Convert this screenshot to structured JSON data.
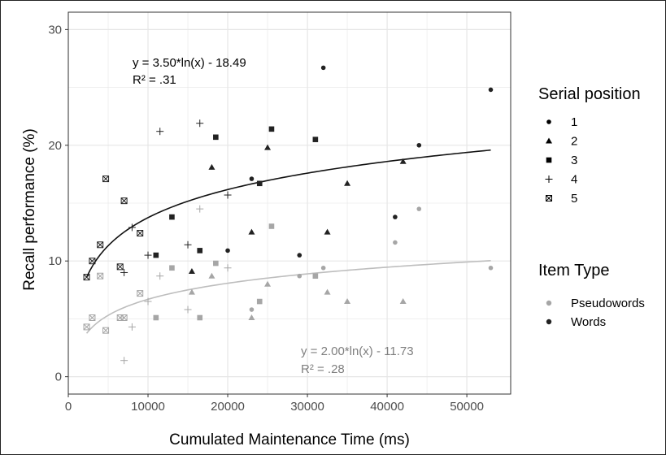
{
  "chart_data": {
    "type": "scatter",
    "title": "",
    "xlabel": "Cumulated Maintenance Time (ms)",
    "ylabel": "Recall performance (%)",
    "xlim": [
      0,
      55500
    ],
    "ylim": [
      -1.5,
      31.5
    ],
    "xticks": [
      0,
      10000,
      20000,
      30000,
      40000,
      50000
    ],
    "xtick_labels": [
      "0",
      "10000",
      "20000",
      "30000",
      "40000",
      "50000"
    ],
    "yticks": [
      0,
      10,
      20,
      30
    ],
    "ytick_labels": [
      "0",
      "10",
      "20",
      "30"
    ],
    "grid": true,
    "colors": {
      "words": "#222222",
      "pseudowords": "#a6a6a6",
      "grid": "#e6e6e6",
      "panel_border": "#333333"
    },
    "legend": {
      "placement": "right",
      "shape_title": "Serial position",
      "shape_items": [
        {
          "label": "1",
          "shape": "circle"
        },
        {
          "label": "2",
          "shape": "triangle"
        },
        {
          "label": "3",
          "shape": "square"
        },
        {
          "label": "4",
          "shape": "plus"
        },
        {
          "label": "5",
          "shape": "boxx"
        }
      ],
      "color_title": "Item Type",
      "color_items": [
        {
          "label": "Pseudowords",
          "color": "#a6a6a6"
        },
        {
          "label": "Words",
          "color": "#222222"
        }
      ]
    },
    "fits": [
      {
        "type": "Words",
        "a": 3.5,
        "b": -18.49,
        "x_from": 2300,
        "x_to": 53000,
        "equation": "y = 3.50*ln(x) - 18.49",
        "r2": "R² = .31"
      },
      {
        "type": "Pseudowords",
        "a": 2.0,
        "b": -11.73,
        "x_from": 2300,
        "x_to": 53000,
        "equation": "y = 2.00*ln(x) - 11.73",
        "r2": "R² = .28"
      }
    ],
    "series": [
      {
        "name": "Words",
        "points": [
          {
            "x": 32000,
            "y": 26.7,
            "pos": "1"
          },
          {
            "x": 53000,
            "y": 24.8,
            "pos": "1"
          },
          {
            "x": 44000,
            "y": 20.0,
            "pos": "1"
          },
          {
            "x": 23000,
            "y": 17.1,
            "pos": "1"
          },
          {
            "x": 41000,
            "y": 13.8,
            "pos": "1"
          },
          {
            "x": 20000,
            "y": 10.9,
            "pos": "1"
          },
          {
            "x": 29000,
            "y": 10.5,
            "pos": "1"
          },
          {
            "x": 25000,
            "y": 19.8,
            "pos": "2"
          },
          {
            "x": 42000,
            "y": 18.6,
            "pos": "2"
          },
          {
            "x": 18000,
            "y": 18.1,
            "pos": "2"
          },
          {
            "x": 35000,
            "y": 16.7,
            "pos": "2"
          },
          {
            "x": 23000,
            "y": 12.5,
            "pos": "2"
          },
          {
            "x": 32500,
            "y": 12.5,
            "pos": "2"
          },
          {
            "x": 15500,
            "y": 9.1,
            "pos": "2"
          },
          {
            "x": 25500,
            "y": 21.4,
            "pos": "3"
          },
          {
            "x": 18500,
            "y": 20.7,
            "pos": "3"
          },
          {
            "x": 31000,
            "y": 20.5,
            "pos": "3"
          },
          {
            "x": 24000,
            "y": 16.7,
            "pos": "3"
          },
          {
            "x": 13000,
            "y": 13.8,
            "pos": "3"
          },
          {
            "x": 16500,
            "y": 10.9,
            "pos": "3"
          },
          {
            "x": 11000,
            "y": 10.5,
            "pos": "3"
          },
          {
            "x": 16500,
            "y": 21.9,
            "pos": "4"
          },
          {
            "x": 11500,
            "y": 21.2,
            "pos": "4"
          },
          {
            "x": 20000,
            "y": 15.7,
            "pos": "4"
          },
          {
            "x": 8000,
            "y": 12.9,
            "pos": "4"
          },
          {
            "x": 15000,
            "y": 11.4,
            "pos": "4"
          },
          {
            "x": 10000,
            "y": 10.5,
            "pos": "4"
          },
          {
            "x": 7000,
            "y": 9.0,
            "pos": "4"
          },
          {
            "x": 4700,
            "y": 17.1,
            "pos": "5"
          },
          {
            "x": 7000,
            "y": 15.2,
            "pos": "5"
          },
          {
            "x": 9000,
            "y": 12.4,
            "pos": "5"
          },
          {
            "x": 4000,
            "y": 11.4,
            "pos": "5"
          },
          {
            "x": 3000,
            "y": 10.0,
            "pos": "5"
          },
          {
            "x": 6500,
            "y": 9.5,
            "pos": "5"
          },
          {
            "x": 2300,
            "y": 8.6,
            "pos": "5"
          }
        ]
      },
      {
        "name": "Pseudowords",
        "points": [
          {
            "x": 44000,
            "y": 14.5,
            "pos": "1"
          },
          {
            "x": 41000,
            "y": 11.6,
            "pos": "1"
          },
          {
            "x": 32000,
            "y": 9.4,
            "pos": "1"
          },
          {
            "x": 53000,
            "y": 9.4,
            "pos": "1"
          },
          {
            "x": 29000,
            "y": 8.7,
            "pos": "1"
          },
          {
            "x": 23000,
            "y": 5.8,
            "pos": "1"
          },
          {
            "x": 18000,
            "y": 8.7,
            "pos": "2"
          },
          {
            "x": 25000,
            "y": 8.0,
            "pos": "2"
          },
          {
            "x": 15500,
            "y": 7.3,
            "pos": "2"
          },
          {
            "x": 32500,
            "y": 7.3,
            "pos": "2"
          },
          {
            "x": 35000,
            "y": 6.5,
            "pos": "2"
          },
          {
            "x": 42000,
            "y": 6.5,
            "pos": "2"
          },
          {
            "x": 23000,
            "y": 5.1,
            "pos": "2"
          },
          {
            "x": 25500,
            "y": 13.0,
            "pos": "3"
          },
          {
            "x": 18500,
            "y": 9.8,
            "pos": "3"
          },
          {
            "x": 13000,
            "y": 9.4,
            "pos": "3"
          },
          {
            "x": 31000,
            "y": 8.7,
            "pos": "3"
          },
          {
            "x": 24000,
            "y": 6.5,
            "pos": "3"
          },
          {
            "x": 11000,
            "y": 5.1,
            "pos": "3"
          },
          {
            "x": 16500,
            "y": 5.1,
            "pos": "3"
          },
          {
            "x": 16500,
            "y": 14.5,
            "pos": "4"
          },
          {
            "x": 20000,
            "y": 9.4,
            "pos": "4"
          },
          {
            "x": 11500,
            "y": 8.7,
            "pos": "4"
          },
          {
            "x": 10000,
            "y": 6.5,
            "pos": "4"
          },
          {
            "x": 15000,
            "y": 5.8,
            "pos": "4"
          },
          {
            "x": 8000,
            "y": 4.3,
            "pos": "4"
          },
          {
            "x": 7000,
            "y": 1.4,
            "pos": "4"
          },
          {
            "x": 4000,
            "y": 8.7,
            "pos": "5"
          },
          {
            "x": 9000,
            "y": 7.2,
            "pos": "5"
          },
          {
            "x": 6500,
            "y": 5.1,
            "pos": "5"
          },
          {
            "x": 7000,
            "y": 5.1,
            "pos": "5"
          },
          {
            "x": 3000,
            "y": 5.1,
            "pos": "5"
          },
          {
            "x": 2300,
            "y": 4.3,
            "pos": "5"
          },
          {
            "x": 4700,
            "y": 4.0,
            "pos": "5"
          }
        ]
      }
    ]
  }
}
